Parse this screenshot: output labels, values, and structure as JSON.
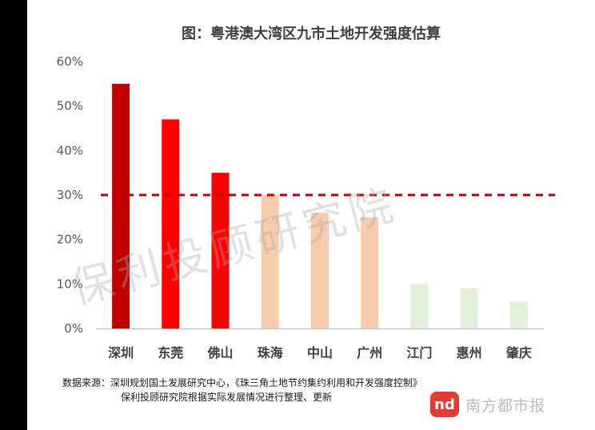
{
  "chart_data": {
    "type": "bar",
    "title": "图：粤港澳大湾区九市土地开发强度估算",
    "categories": [
      "深圳",
      "东莞",
      "佛山",
      "珠海",
      "中山",
      "广州",
      "江门",
      "惠州",
      "肇庆"
    ],
    "values": [
      55,
      47,
      35,
      30,
      26,
      25,
      10,
      9,
      6
    ],
    "bar_colors": [
      "#c00000",
      "#ff0000",
      "#ff0000",
      "#f8cbad",
      "#f8cbad",
      "#f8cbad",
      "#e2efda",
      "#e2efda",
      "#e2efda"
    ],
    "yticks": [
      "0%",
      "10%",
      "20%",
      "30%",
      "40%",
      "50%",
      "60%"
    ],
    "ylim": [
      0,
      60
    ],
    "reference_line": {
      "value": 30,
      "color": "#c00000",
      "style": "dashed"
    },
    "grid": false
  },
  "source": {
    "line1": "数据来源：深圳规划国土发展研究中心，《珠三角土地节约集约利用和开发强度控制》",
    "line2": "保利投顾研究院根据实际发展情况进行整理、更新"
  },
  "watermark": "保利投顾研究院",
  "logo": {
    "mark": "nd",
    "text": "南方都市报"
  }
}
